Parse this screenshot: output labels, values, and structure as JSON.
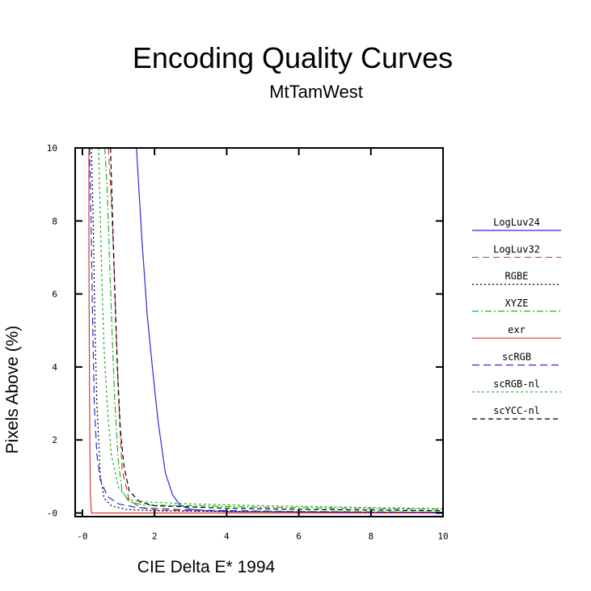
{
  "chart_data": {
    "type": "line",
    "title": "Encoding Quality Curves",
    "subtitle": "MtTamWest",
    "xlabel": "CIE Delta E* 1994",
    "ylabel": "Pixels Above (%)",
    "xlim": [
      -0.2,
      10
    ],
    "ylim": [
      -0.1,
      10
    ],
    "xticks": [
      0,
      2,
      4,
      6,
      8,
      10
    ],
    "xtick_labels": [
      "-0",
      "2",
      "4",
      "6",
      "8",
      "10"
    ],
    "yticks": [
      0,
      2,
      4,
      6,
      8,
      10
    ],
    "ytick_labels": [
      "-0",
      "2",
      "4",
      "6",
      "8",
      "10"
    ],
    "grid": false,
    "legend_position": "right",
    "series": [
      {
        "name": "LogLuv24",
        "color": "#2b2bd6",
        "dash": "solid",
        "x": [
          1.5,
          1.65,
          1.8,
          1.95,
          2.1,
          2.3,
          2.5,
          2.7,
          3.0,
          3.5,
          4,
          6,
          8,
          10
        ],
        "y": [
          10,
          7.5,
          5.4,
          3.9,
          2.5,
          1.1,
          0.5,
          0.22,
          0.1,
          0.06,
          0.04,
          0.03,
          0.02,
          0.02
        ]
      },
      {
        "name": "LogLuv32",
        "color": "#d43a3a",
        "dash": "8,5",
        "x": [
          0.72,
          0.78,
          0.85,
          0.92,
          1.0,
          1.1,
          1.3,
          1.6,
          2,
          4,
          6,
          8,
          10
        ],
        "y": [
          10,
          9,
          7.5,
          5.5,
          3.2,
          1.2,
          0.35,
          0.15,
          0.08,
          0.04,
          0.03,
          0.02,
          0.02
        ]
      },
      {
        "name": "RGBE",
        "color": "#000000",
        "dash": "2,3",
        "x": [
          0.25,
          0.3,
          0.35,
          0.4,
          0.5,
          0.6,
          0.8,
          1.2,
          2,
          4,
          6,
          8,
          10
        ],
        "y": [
          10,
          8,
          5,
          3,
          1,
          0.4,
          0.2,
          0.1,
          0.06,
          0.04,
          0.03,
          0.02,
          0.02
        ]
      },
      {
        "name": "XYZE",
        "color": "#22b022",
        "dash": "8,3,2,3",
        "x": [
          0.62,
          0.68,
          0.75,
          0.82,
          0.9,
          1.0,
          1.1,
          1.3,
          1.7,
          3,
          5,
          8,
          10
        ],
        "y": [
          10,
          9,
          7,
          5,
          3,
          1.4,
          0.6,
          0.3,
          0.22,
          0.2,
          0.16,
          0.12,
          0.1
        ]
      },
      {
        "name": "exr",
        "color": "#d43a3a",
        "dash": "solid",
        "x": [
          0.18,
          0.18,
          0.2,
          0.22,
          0.25,
          1,
          4,
          10
        ],
        "y": [
          10,
          7,
          3,
          0.5,
          0,
          0,
          0,
          0
        ]
      },
      {
        "name": "scRGB",
        "color": "#2b2bd6",
        "dash": "9,5",
        "x": [
          0.2,
          0.24,
          0.28,
          0.33,
          0.4,
          0.5,
          0.7,
          1.0,
          1.5,
          3,
          6,
          10
        ],
        "y": [
          10,
          8,
          5.5,
          3,
          1.6,
          0.9,
          0.45,
          0.25,
          0.15,
          0.08,
          0.04,
          0.02
        ]
      },
      {
        "name": "scRGB-nl",
        "color": "#22b022",
        "dash": "3,3",
        "x": [
          0.45,
          0.5,
          0.55,
          0.6,
          0.7,
          0.8,
          1.0,
          1.3,
          1.8,
          3,
          5,
          8,
          10
        ],
        "y": [
          10,
          8,
          6,
          4.5,
          2.8,
          1.6,
          0.7,
          0.35,
          0.3,
          0.25,
          0.2,
          0.15,
          0.12
        ]
      },
      {
        "name": "scYCC-nl",
        "color": "#000000",
        "dash": "6,4",
        "x": [
          0.78,
          0.84,
          0.9,
          0.97,
          1.05,
          1.15,
          1.3,
          1.6,
          2,
          4,
          6,
          8,
          10
        ],
        "y": [
          10,
          8,
          6,
          4,
          2.3,
          1.3,
          0.6,
          0.3,
          0.2,
          0.13,
          0.1,
          0.08,
          0.06
        ]
      }
    ]
  }
}
